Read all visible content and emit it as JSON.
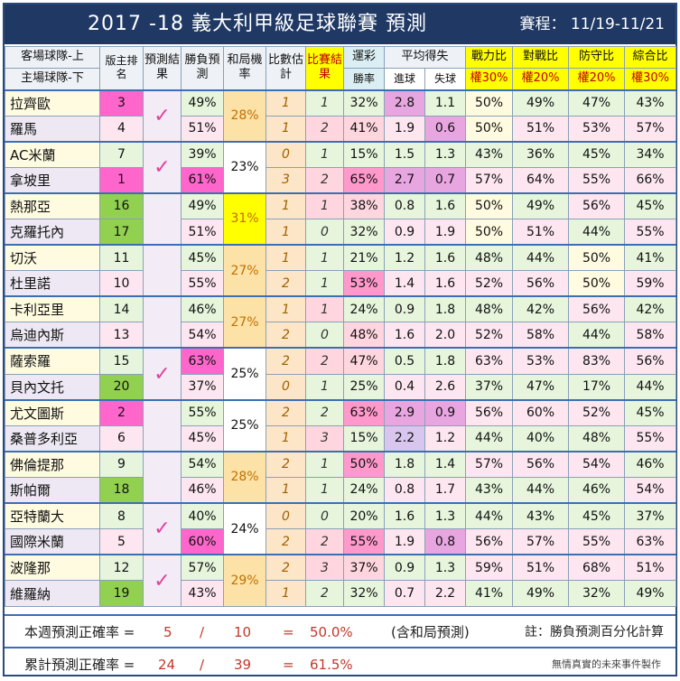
{
  "title": "2017 -18  義大利甲級足球聯賽  預測",
  "schedule": "賽程： 11/19-11/21",
  "headers": {
    "team_top": "客場球隊-上",
    "team_bottom": "主場球隊-下",
    "rank": "版主排名",
    "pred_result": "預測結果",
    "winloss": "勝負預測",
    "draw": "和局機率",
    "score_est": "比數估計",
    "match_result": "比賽結果",
    "lottery": "運彩",
    "win_rate": "勝率",
    "avg": "平均得失",
    "goals_for": "進球",
    "goals_against": "失球",
    "power": "戰力比",
    "power_w": "權30%",
    "h2h": "對戰比",
    "h2h_w": "權20%",
    "defense": "防守比",
    "defense_w": "權20%",
    "total": "綜合比",
    "total_w": "權30%"
  },
  "matches": [
    {
      "draw": "28%",
      "check": "✓",
      "teams": [
        {
          "name": "拉齊歐",
          "rank": "3",
          "wl": "49%",
          "est": "1",
          "res": "1",
          "lot": "32%",
          "gf": "2.8",
          "ga": "1.1",
          "pw": "50%",
          "hh": "49%",
          "df": "47%",
          "tot": "43%"
        },
        {
          "name": "羅馬",
          "rank": "4",
          "wl": "51%",
          "est": "1",
          "res": "2",
          "lot": "41%",
          "gf": "1.9",
          "ga": "0.6",
          "pw": "50%",
          "hh": "51%",
          "df": "53%",
          "tot": "57%"
        }
      ]
    },
    {
      "draw": "23%",
      "check": "✓",
      "teams": [
        {
          "name": "AC米蘭",
          "rank": "7",
          "wl": "39%",
          "est": "0",
          "res": "1",
          "lot": "15%",
          "gf": "1.5",
          "ga": "1.3",
          "pw": "43%",
          "hh": "36%",
          "df": "45%",
          "tot": "34%"
        },
        {
          "name": "拿坡里",
          "rank": "1",
          "wl": "61%",
          "est": "3",
          "res": "2",
          "lot": "65%",
          "gf": "2.7",
          "ga": "0.7",
          "pw": "57%",
          "hh": "64%",
          "df": "55%",
          "tot": "66%"
        }
      ]
    },
    {
      "draw": "31%",
      "check": "",
      "teams": [
        {
          "name": "熱那亞",
          "rank": "16",
          "wl": "49%",
          "est": "1",
          "res": "1",
          "lot": "38%",
          "gf": "0.8",
          "ga": "1.6",
          "pw": "50%",
          "hh": "49%",
          "df": "56%",
          "tot": "45%"
        },
        {
          "name": "克羅托內",
          "rank": "17",
          "wl": "51%",
          "est": "1",
          "res": "0",
          "lot": "32%",
          "gf": "0.9",
          "ga": "1.9",
          "pw": "50%",
          "hh": "51%",
          "df": "44%",
          "tot": "55%"
        }
      ]
    },
    {
      "draw": "27%",
      "check": "",
      "teams": [
        {
          "name": "切沃",
          "rank": "11",
          "wl": "45%",
          "est": "1",
          "res": "1",
          "lot": "21%",
          "gf": "1.2",
          "ga": "1.6",
          "pw": "48%",
          "hh": "44%",
          "df": "50%",
          "tot": "41%"
        },
        {
          "name": "杜里諾",
          "rank": "10",
          "wl": "55%",
          "est": "2",
          "res": "1",
          "lot": "53%",
          "gf": "1.4",
          "ga": "1.6",
          "pw": "52%",
          "hh": "56%",
          "df": "50%",
          "tot": "59%"
        }
      ]
    },
    {
      "draw": "27%",
      "check": "",
      "teams": [
        {
          "name": "卡利亞里",
          "rank": "14",
          "wl": "46%",
          "est": "1",
          "res": "1",
          "lot": "24%",
          "gf": "0.9",
          "ga": "1.8",
          "pw": "48%",
          "hh": "42%",
          "df": "56%",
          "tot": "42%"
        },
        {
          "name": "烏迪內斯",
          "rank": "13",
          "wl": "54%",
          "est": "2",
          "res": "0",
          "lot": "48%",
          "gf": "1.6",
          "ga": "2.0",
          "pw": "52%",
          "hh": "58%",
          "df": "44%",
          "tot": "58%"
        }
      ]
    },
    {
      "draw": "25%",
      "check": "✓",
      "teams": [
        {
          "name": "薩索羅",
          "rank": "15",
          "wl": "63%",
          "est": "2",
          "res": "2",
          "lot": "47%",
          "gf": "0.5",
          "ga": "1.8",
          "pw": "63%",
          "hh": "53%",
          "df": "83%",
          "tot": "56%"
        },
        {
          "name": "貝內文托",
          "rank": "20",
          "wl": "37%",
          "est": "0",
          "res": "1",
          "lot": "25%",
          "gf": "0.4",
          "ga": "2.6",
          "pw": "37%",
          "hh": "47%",
          "df": "17%",
          "tot": "44%"
        }
      ]
    },
    {
      "draw": "25%",
      "check": "",
      "teams": [
        {
          "name": "尤文圖斯",
          "rank": "2",
          "wl": "55%",
          "est": "2",
          "res": "2",
          "lot": "63%",
          "gf": "2.9",
          "ga": "0.9",
          "pw": "56%",
          "hh": "60%",
          "df": "52%",
          "tot": "45%"
        },
        {
          "name": "桑普多利亞",
          "rank": "6",
          "wl": "45%",
          "est": "1",
          "res": "3",
          "lot": "15%",
          "gf": "2.2",
          "ga": "1.2",
          "pw": "44%",
          "hh": "40%",
          "df": "48%",
          "tot": "55%"
        }
      ]
    },
    {
      "draw": "28%",
      "check": "",
      "teams": [
        {
          "name": "佛倫提那",
          "rank": "9",
          "wl": "54%",
          "est": "2",
          "res": "1",
          "lot": "50%",
          "gf": "1.8",
          "ga": "1.4",
          "pw": "57%",
          "hh": "56%",
          "df": "54%",
          "tot": "46%"
        },
        {
          "name": "斯帕爾",
          "rank": "18",
          "wl": "46%",
          "est": "1",
          "res": "1",
          "lot": "24%",
          "gf": "0.8",
          "ga": "1.7",
          "pw": "43%",
          "hh": "44%",
          "df": "46%",
          "tot": "54%"
        }
      ]
    },
    {
      "draw": "24%",
      "check": "✓",
      "teams": [
        {
          "name": "亞特蘭大",
          "rank": "8",
          "wl": "40%",
          "est": "0",
          "res": "0",
          "lot": "20%",
          "gf": "1.6",
          "ga": "1.3",
          "pw": "44%",
          "hh": "43%",
          "df": "45%",
          "tot": "37%"
        },
        {
          "name": "國際米蘭",
          "rank": "5",
          "wl": "60%",
          "est": "2",
          "res": "2",
          "lot": "55%",
          "gf": "1.9",
          "ga": "0.8",
          "pw": "56%",
          "hh": "57%",
          "df": "55%",
          "tot": "63%"
        }
      ]
    },
    {
      "draw": "29%",
      "check": "✓",
      "teams": [
        {
          "name": "波隆那",
          "rank": "12",
          "wl": "57%",
          "est": "2",
          "res": "3",
          "lot": "37%",
          "gf": "0.9",
          "ga": "1.3",
          "pw": "59%",
          "hh": "51%",
          "df": "68%",
          "tot": "51%"
        },
        {
          "name": "維羅納",
          "rank": "19",
          "wl": "43%",
          "est": "1",
          "res": "2",
          "lot": "32%",
          "gf": "0.7",
          "ga": "2.2",
          "pw": "41%",
          "hh": "49%",
          "df": "32%",
          "tot": "49%"
        }
      ]
    }
  ],
  "footer": {
    "weekly_label": "本週預測正確率 =",
    "weekly_correct": "5",
    "slash": "/",
    "weekly_total": "10",
    "eq": "=",
    "weekly_pct": "50.0%",
    "incl_draw": "(含和局預測)",
    "note": "註：勝負預測百分化計算",
    "cum_label": "累計預測正確率 =",
    "cum_correct": "24",
    "cum_total": "39",
    "cum_pct": "61.5%",
    "credit": "無情真實的未來事件製作"
  },
  "colors": {
    "title_bg": "#1f3864",
    "header_yellow": "#ffff00",
    "check_pink": "#e0409a"
  }
}
